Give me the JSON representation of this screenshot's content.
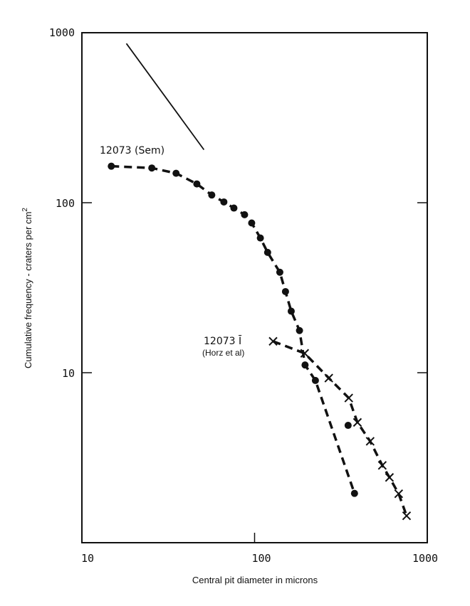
{
  "chart_data": {
    "type": "scatter",
    "title": "",
    "xlabel": "Central pit diameter in microns",
    "ylabel": "Cumulative frequency - craters per cm",
    "ylabel_superscript": "2",
    "xscale": "log",
    "yscale": "log",
    "xlim": [
      10,
      1000
    ],
    "ylim": [
      1,
      1000
    ],
    "x_ticks": [
      "10",
      "100",
      "1000"
    ],
    "y_ticks": [
      "1000",
      "100",
      "10"
    ],
    "grid": false,
    "series": [
      {
        "name": "12073 (Sem)",
        "marker": "dot",
        "line": "dashed",
        "x": [
          14.8,
          25.4,
          35.1,
          46.3,
          56.5,
          66.4,
          75.9,
          87.5,
          96.2,
          108,
          119,
          140,
          151,
          163,
          182,
          196,
          225,
          379
        ],
        "y": [
          164,
          160,
          149,
          129,
          111,
          101,
          93,
          85,
          76,
          62,
          51,
          39,
          30,
          23,
          17.7,
          11.1,
          9.0,
          1.95
        ]
      },
      {
        "name": "12073 (Sem) outlier",
        "marker": "dot",
        "line": "none",
        "x": [
          348
        ],
        "y": [
          4.9
        ]
      },
      {
        "name": "12073 Ī (Horz et al)",
        "marker": "x",
        "line": "dashed",
        "x": [
          128,
          195,
          269,
          351,
          394,
          467,
          549,
          604,
          683,
          759
        ],
        "y": [
          15.3,
          13.0,
          9.3,
          7.1,
          5.1,
          3.95,
          2.85,
          2.42,
          1.94,
          1.44
        ]
      },
      {
        "name": "reference slope",
        "marker": "none",
        "line": "solid",
        "x": [
          18.1,
          50.9
        ],
        "y": [
          864,
          205
        ]
      }
    ],
    "annotations": {
      "sem_label": "12073 (Sem)",
      "horz_label": "12073 Ī",
      "horz_sublabel": "(Horz et al)"
    }
  }
}
